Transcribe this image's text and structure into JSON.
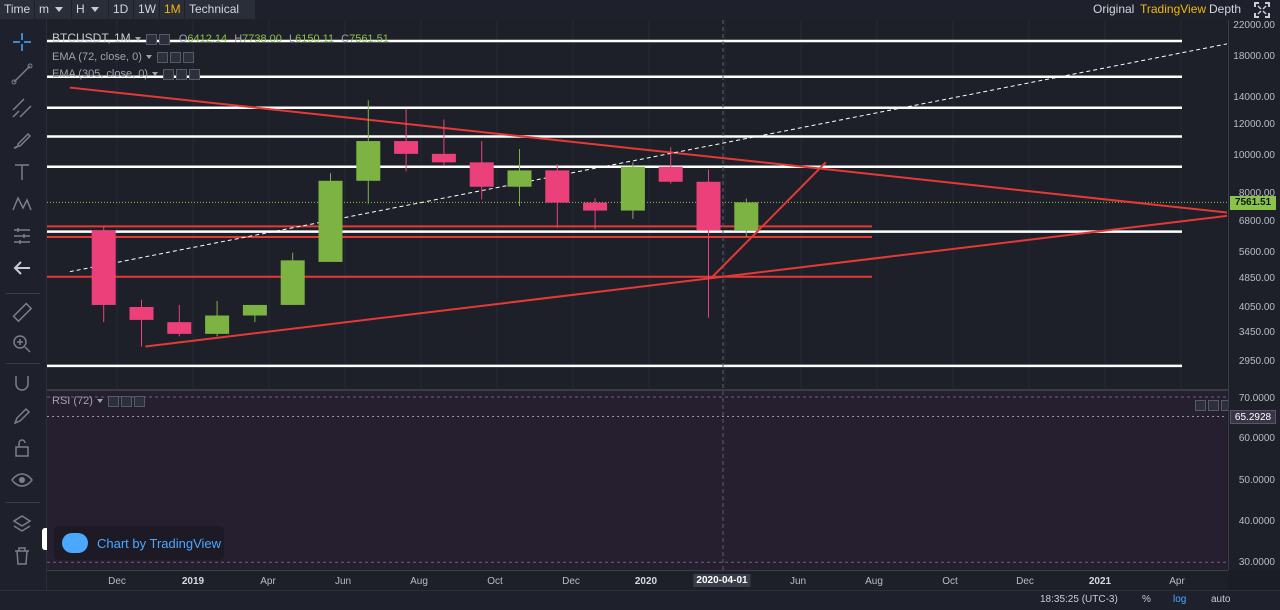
{
  "toolbar": {
    "time_label": "Time",
    "minute_label": "m",
    "hour_label": "H",
    "intervals": [
      "1D",
      "1W",
      "1M"
    ],
    "active_interval": "1M",
    "indicators_label": "Technical Ind",
    "views": [
      "Original",
      "TradingView",
      "Depth"
    ],
    "active_view": "TradingView"
  },
  "legend": {
    "symbol": "BTCUSDT, 1M",
    "open_key": "O",
    "open_value": "6412.14",
    "high_key": "H",
    "high_value": "7738.00",
    "low_key": "L",
    "low_value": "6150.11",
    "close_key": "C",
    "close_value": "7561.51",
    "ema1": "EMA (72, close, 0)",
    "ema2": "EMA (305, close, 0)",
    "rsi": "RSI (72)"
  },
  "price_axis": {
    "ticks": [
      "22000.00",
      "18000.00",
      "14000.00",
      "12000.00",
      "10000.00",
      "8000.00",
      "6800.00",
      "5600.00",
      "4850.00",
      "4050.00",
      "3450.00",
      "2950.00"
    ],
    "current_price": "7561.51"
  },
  "rsi_axis": {
    "ticks": [
      "70.0000",
      "60.0000",
      "50.0000",
      "40.0000",
      "30.0000"
    ],
    "current_value": "65.2928"
  },
  "time_axis": {
    "labels": [
      "Dec",
      "2019",
      "Apr",
      "Jun",
      "Aug",
      "Oct",
      "Dec",
      "2020",
      "2020-04-01",
      "Jun",
      "Aug",
      "Oct",
      "Dec",
      "2021",
      "Apr"
    ],
    "cursor_label": "2020-04-01"
  },
  "watermark": "Chart by TradingView",
  "status": {
    "clock": "18:35:25 (UTC-3)",
    "percent": "%",
    "log": "log",
    "auto": "auto"
  },
  "chart_data": {
    "type": "candlestick",
    "symbol": "BTCUSDT, 1M",
    "scale": "log",
    "candles": [
      {
        "t": "2018-11",
        "open": 6400,
        "high": 6550,
        "low": 3700,
        "close": 4100
      },
      {
        "t": "2018-12",
        "open": 4050,
        "high": 4230,
        "low": 3200,
        "close": 3750
      },
      {
        "t": "2019-01",
        "open": 3700,
        "high": 4100,
        "low": 3400,
        "close": 3450
      },
      {
        "t": "2019-02",
        "open": 3450,
        "high": 4200,
        "low": 3400,
        "close": 3850
      },
      {
        "t": "2019-03",
        "open": 3850,
        "high": 4100,
        "low": 3700,
        "close": 4100
      },
      {
        "t": "2019-04",
        "open": 4100,
        "high": 5600,
        "low": 4100,
        "close": 5350
      },
      {
        "t": "2019-05",
        "open": 5300,
        "high": 9000,
        "low": 5300,
        "close": 8600
      },
      {
        "t": "2019-06",
        "open": 8600,
        "high": 13900,
        "low": 7500,
        "close": 10900
      },
      {
        "t": "2019-07",
        "open": 10900,
        "high": 13200,
        "low": 9100,
        "close": 10100
      },
      {
        "t": "2019-08",
        "open": 10100,
        "high": 12400,
        "low": 9400,
        "close": 9600
      },
      {
        "t": "2019-09",
        "open": 9600,
        "high": 10900,
        "low": 7700,
        "close": 8300
      },
      {
        "t": "2019-10",
        "open": 8300,
        "high": 10400,
        "low": 7400,
        "close": 9150
      },
      {
        "t": "2019-11",
        "open": 9150,
        "high": 9500,
        "low": 6500,
        "close": 7550
      },
      {
        "t": "2019-12",
        "open": 7550,
        "high": 7750,
        "low": 6450,
        "close": 7200
      },
      {
        "t": "2020-01",
        "open": 7200,
        "high": 9600,
        "low": 6850,
        "close": 9350
      },
      {
        "t": "2020-02",
        "open": 9350,
        "high": 10500,
        "low": 8450,
        "close": 8550
      },
      {
        "t": "2020-03",
        "open": 8550,
        "high": 9200,
        "low": 3800,
        "close": 6400
      },
      {
        "t": "2020-04",
        "open": 6412.14,
        "high": 7738.0,
        "low": 6150.11,
        "close": 7561.51
      }
    ],
    "horizontal_levels": [
      {
        "price": 19800,
        "color": "#ffffff"
      },
      {
        "price": 16000,
        "color": "#ffffff"
      },
      {
        "price": 13300,
        "color": "#ffffff"
      },
      {
        "price": 11200,
        "color": "#ffffff"
      },
      {
        "price": 9350,
        "color": "#ffffff"
      },
      {
        "price": 6350,
        "color": "#ffffff"
      },
      {
        "price": 2850,
        "color": "#ffffff"
      },
      {
        "price": 6550,
        "color": "#e53935"
      },
      {
        "price": 6150,
        "color": "#e53935"
      },
      {
        "price": 4850,
        "color": "#e53935"
      }
    ],
    "trend_lines": [
      {
        "from": {
          "t": "2018-10",
          "price": 15000
        },
        "to": {
          "t": "2021-05",
          "price": 7050
        },
        "color": "#e53935"
      },
      {
        "from": {
          "t": "2018-12",
          "price": 3200
        },
        "to": {
          "t": "2021-05",
          "price": 7050
        },
        "color": "#e53935"
      },
      {
        "from": {
          "t": "2020-03",
          "price": 4850
        },
        "to": {
          "t": "2020-06",
          "price": 9600
        },
        "color": "#e53935"
      },
      {
        "from": {
          "t": "2018-10",
          "price": 5000
        },
        "to": {
          "t": "2021-05",
          "price": 19800
        },
        "color": "#ffffff",
        "dashed": true
      }
    ],
    "colors": {
      "up": "#7cb342",
      "down": "#ec407a",
      "level": "#ffffff",
      "trend": "#e53935",
      "rsi_band": "#251f30"
    },
    "rsi": {
      "period": 72,
      "value": 65.2928,
      "upper_band": 70,
      "lower_band": 30
    }
  }
}
